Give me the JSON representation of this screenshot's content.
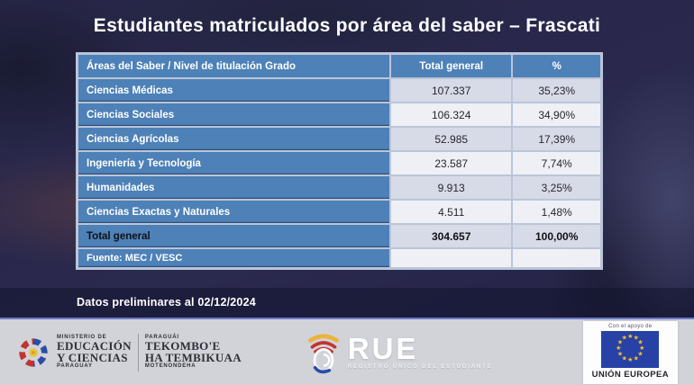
{
  "title": "Estudiantes matriculados por área del saber – Frascati",
  "table": {
    "columns": [
      "Áreas del Saber / Nivel de titulación Grado",
      "Total general",
      "%"
    ],
    "rows": [
      {
        "area": "Ciencias Médicas",
        "total": "107.337",
        "pct": "35,23%"
      },
      {
        "area": "Ciencias Sociales",
        "total": "106.324",
        "pct": "34,90%"
      },
      {
        "area": "Ciencias Agrícolas",
        "total": "52.985",
        "pct": "17,39%"
      },
      {
        "area": "Ingeniería y Tecnología",
        "total": "23.587",
        "pct": "7,74%"
      },
      {
        "area": "Humanidades",
        "total": "9.913",
        "pct": "3,25%"
      },
      {
        "area": "Ciencias Exactas y Naturales",
        "total": "4.511",
        "pct": "1,48%"
      },
      {
        "area": "Total general",
        "total": "304.657",
        "pct": "100,00%",
        "bold": true
      },
      {
        "area": "Fuente: MEC / VESC",
        "total": "",
        "pct": "",
        "source": true
      }
    ]
  },
  "note": "Datos preliminares al 02/12/2024",
  "footer": {
    "ministry": {
      "line1": "MINISTERIO DE",
      "line2": "EDUCACIÓN",
      "line3": "Y CIENCIAS",
      "line4": "PARAGUAY"
    },
    "guarani": {
      "line1": "PARAGUÁI",
      "line2": "TEKOMBO'E",
      "line3": "HA TEMBIKUAA",
      "line4": "MOTENONDEHA"
    },
    "rue": {
      "name": "RUE",
      "tagline": "REGISTRO ÚNICO DEL ESTUDIANTE"
    },
    "eu": {
      "support": "Con el apoyo de",
      "name": "UNIÓN EUROPEA"
    }
  },
  "colors": {
    "background_navy": "#272648",
    "header_blue": "#4d81b7",
    "row_shaded": "#d7dbe7",
    "row_light": "#eef0f6",
    "footer_band": "#d2d3d9",
    "eu_flag_blue": "#2741a6",
    "eu_star_yellow": "#f7c52c",
    "title_text": "#ffffff"
  },
  "chart_data": {
    "type": "table",
    "title": "Estudiantes matriculados por área del saber – Frascati",
    "columns": [
      "Áreas del Saber / Nivel de titulación Grado",
      "Total general",
      "%"
    ],
    "categories": [
      "Ciencias Médicas",
      "Ciencias Sociales",
      "Ciencias Agrícolas",
      "Ingeniería y Tecnología",
      "Humanidades",
      "Ciencias Exactas y Naturales"
    ],
    "series": [
      {
        "name": "Total general",
        "values": [
          107337,
          106324,
          52985,
          23587,
          9913,
          4511
        ]
      },
      {
        "name": "%",
        "values": [
          35.23,
          34.9,
          17.39,
          7.74,
          3.25,
          1.48
        ]
      }
    ],
    "total_row": {
      "label": "Total general",
      "total": 304657,
      "pct": 100.0
    },
    "source": "Fuente: MEC / VESC",
    "note": "Datos preliminares al 02/12/2024"
  }
}
